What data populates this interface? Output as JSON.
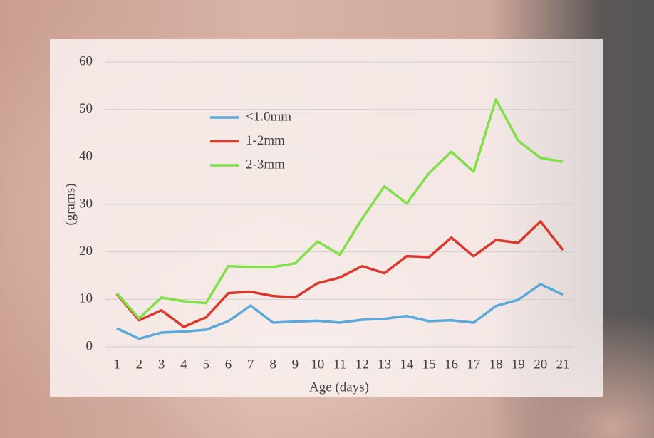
{
  "chart_data": {
    "type": "line",
    "x_label": "Age (days)",
    "y_label": "(grams)",
    "categories": [
      "1",
      "2",
      "3",
      "4",
      "5",
      "6",
      "7",
      "8",
      "9",
      "10",
      "11",
      "12",
      "13",
      "14",
      "15",
      "16",
      "17",
      "18",
      "19",
      "20",
      "21"
    ],
    "series": [
      {
        "name": "<1.0mm",
        "color": "#5ba8da",
        "values": [
          3.9,
          1.7,
          3.0,
          3.2,
          3.6,
          5.4,
          8.7,
          5.1,
          5.3,
          5.5,
          5.1,
          5.7,
          5.9,
          6.5,
          5.4,
          5.6,
          5.1,
          8.6,
          9.9,
          13.2,
          11.0
        ]
      },
      {
        "name": "1-2mm",
        "color": "#d9392c",
        "values": [
          11.1,
          5.6,
          7.7,
          4.2,
          6.2,
          11.3,
          11.6,
          10.7,
          10.4,
          13.4,
          14.6,
          17.0,
          15.5,
          19.1,
          18.9,
          23.0,
          19.1,
          22.5,
          21.9,
          26.4,
          20.4
        ]
      },
      {
        "name": "2-3mm",
        "color": "#7fe048",
        "values": [
          11.3,
          6.0,
          10.4,
          9.6,
          9.2,
          17.0,
          16.8,
          16.8,
          17.6,
          22.2,
          19.4,
          27.0,
          33.8,
          30.2,
          36.6,
          41.1,
          36.9,
          52.1,
          43.4,
          39.8,
          39.0
        ]
      }
    ],
    "ylim": [
      0,
      60
    ],
    "yticks": [
      0,
      10,
      20,
      30,
      40,
      50,
      60
    ],
    "grid": true
  }
}
